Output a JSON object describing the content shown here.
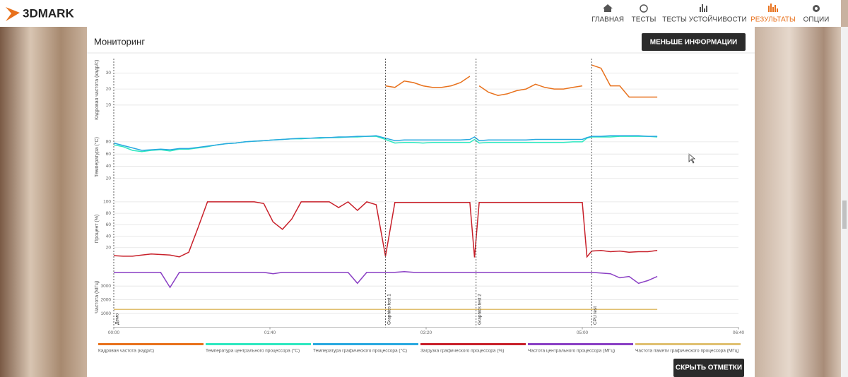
{
  "header": {
    "logo": "3DMARK",
    "nav": [
      "ГЛАВНАЯ",
      "ТЕСТЫ",
      "ТЕСТЫ УСТОЙЧИВОСТИ",
      "РЕЗУЛЬТАТЫ",
      "ОПЦИИ"
    ]
  },
  "panel": {
    "title": "Мониторинг",
    "toggle_button": "МЕНЬШЕ ИНФОРМАЦИИ",
    "hide_button": "СКРЫТЬ ОТМЕТКИ"
  },
  "test_markers": [
    {
      "x": 0,
      "label": "Демо"
    },
    {
      "x": 174,
      "label": "Graphics test 1"
    },
    {
      "x": 232,
      "label": "Graphics test 2"
    },
    {
      "x": 306,
      "label": "CPU test"
    }
  ],
  "chart_data": [
    {
      "type": "line",
      "ylabel": "Кадровая частота (кадр/с)",
      "xlim": [
        0,
        400
      ],
      "ylim": [
        0,
        39
      ],
      "yticks": [
        10,
        20,
        30
      ],
      "grid": true,
      "x": [
        0,
        6,
        12,
        18,
        24,
        30,
        36,
        42,
        48,
        54,
        60,
        66,
        72,
        78,
        84,
        90,
        96,
        102,
        108,
        114,
        120,
        126,
        132,
        138,
        144,
        150,
        156,
        162,
        168,
        174,
        180,
        186,
        192,
        198,
        204,
        210,
        216,
        222,
        228,
        231,
        234,
        240,
        246,
        252,
        258,
        264,
        270,
        276,
        282,
        288,
        294,
        300,
        303,
        306,
        312,
        318,
        324,
        330,
        336,
        342,
        348
      ],
      "series": [
        {
          "name": "Кадровая частота (кадр/с)",
          "color": "#e8711c",
          "values": [
            null,
            null,
            null,
            null,
            null,
            null,
            null,
            null,
            null,
            null,
            null,
            null,
            null,
            null,
            null,
            null,
            null,
            null,
            null,
            null,
            null,
            null,
            null,
            null,
            null,
            null,
            null,
            null,
            null,
            22,
            21,
            25,
            24,
            22,
            21,
            21,
            22,
            24,
            28,
            null,
            22,
            18,
            16,
            17,
            19,
            20,
            23,
            21,
            20,
            20,
            21,
            22,
            null,
            35,
            33,
            22,
            22,
            15,
            15,
            15,
            15
          ]
        }
      ]
    },
    {
      "type": "line",
      "ylabel": "Температура (°C)",
      "xlim": [
        0,
        400
      ],
      "ylim": [
        0,
        110
      ],
      "yticks": [
        20,
        40,
        60,
        80
      ],
      "grid": true,
      "x": [
        0,
        6,
        12,
        18,
        24,
        30,
        36,
        42,
        48,
        54,
        60,
        66,
        72,
        78,
        84,
        90,
        96,
        102,
        108,
        114,
        120,
        126,
        132,
        138,
        144,
        150,
        156,
        162,
        168,
        174,
        180,
        186,
        192,
        198,
        204,
        210,
        216,
        222,
        228,
        231,
        234,
        240,
        246,
        252,
        258,
        264,
        270,
        276,
        282,
        288,
        294,
        300,
        303,
        306,
        312,
        318,
        324,
        330,
        336,
        342,
        348
      ],
      "series": [
        {
          "name": "Температура центрального процессора (°C)",
          "color": "#2ee8c0",
          "values": [
            75,
            72,
            66,
            64,
            66,
            67,
            65,
            68,
            68,
            70,
            72,
            75,
            77,
            78,
            80,
            81,
            82,
            83,
            84,
            85,
            85,
            86,
            86,
            87,
            87,
            88,
            88,
            89,
            89,
            84,
            78,
            79,
            79,
            78,
            79,
            79,
            79,
            79,
            79,
            84,
            78,
            79,
            79,
            79,
            79,
            79,
            79,
            79,
            79,
            79,
            80,
            80,
            86,
            88,
            88,
            88,
            89,
            89,
            89,
            89,
            88
          ]
        },
        {
          "name": "Температура графического процессора (°C)",
          "color": "#29a9e0",
          "values": [
            78,
            74,
            70,
            66,
            67,
            68,
            67,
            69,
            69,
            71,
            73,
            75,
            77,
            78,
            80,
            81,
            82,
            83,
            84,
            85,
            86,
            86,
            87,
            87,
            88,
            88,
            89,
            89,
            90,
            86,
            82,
            83,
            83,
            83,
            83,
            83,
            83,
            83,
            84,
            88,
            82,
            83,
            83,
            83,
            83,
            83,
            84,
            84,
            84,
            84,
            84,
            84,
            87,
            89,
            89,
            90,
            90,
            90,
            90,
            89,
            89
          ]
        }
      ]
    },
    {
      "type": "line",
      "ylabel": "Процент (%)",
      "xlim": [
        0,
        400
      ],
      "ylim": [
        0,
        106
      ],
      "yticks": [
        20,
        40,
        60,
        80,
        100
      ],
      "grid": true,
      "x": [
        0,
        6,
        12,
        18,
        24,
        30,
        36,
        42,
        48,
        54,
        60,
        66,
        72,
        78,
        84,
        90,
        96,
        102,
        108,
        114,
        120,
        126,
        132,
        138,
        144,
        150,
        156,
        162,
        168,
        174,
        180,
        186,
        192,
        198,
        204,
        210,
        216,
        222,
        228,
        231,
        234,
        240,
        246,
        252,
        258,
        264,
        270,
        276,
        282,
        288,
        294,
        300,
        303,
        306,
        312,
        318,
        324,
        330,
        336,
        342,
        348
      ],
      "series": [
        {
          "name": "Загрузка графического процессора (%)",
          "color": "#c8202a",
          "values": [
            6,
            5,
            5,
            7,
            9,
            8,
            7,
            4,
            12,
            55,
            100,
            100,
            100,
            100,
            100,
            100,
            97,
            65,
            52,
            70,
            100,
            100,
            100,
            100,
            90,
            100,
            85,
            100,
            95,
            5,
            99,
            99,
            99,
            99,
            99,
            99,
            99,
            99,
            99,
            3,
            99,
            99,
            99,
            99,
            99,
            99,
            99,
            99,
            99,
            99,
            99,
            99,
            4,
            14,
            15,
            13,
            14,
            12,
            13,
            13,
            15
          ]
        }
      ]
    },
    {
      "type": "line",
      "ylabel": "Частота (МГц)",
      "xlim": [
        0,
        400
      ],
      "ylim": [
        0,
        4400
      ],
      "yticks": [
        1000,
        2000,
        3000
      ],
      "grid": true,
      "xticks": [
        {
          "value": 0,
          "label": "00:00"
        },
        {
          "value": 100,
          "label": "01:40"
        },
        {
          "value": 200,
          "label": "03:20"
        },
        {
          "value": 300,
          "label": "05:00"
        },
        {
          "value": 400,
          "label": "06:40"
        }
      ],
      "x": [
        0,
        6,
        12,
        18,
        24,
        30,
        36,
        42,
        48,
        54,
        60,
        66,
        72,
        78,
        84,
        90,
        96,
        102,
        108,
        114,
        120,
        126,
        132,
        138,
        144,
        150,
        156,
        162,
        168,
        174,
        180,
        186,
        192,
        198,
        204,
        210,
        216,
        222,
        228,
        231,
        234,
        240,
        246,
        252,
        258,
        264,
        270,
        276,
        282,
        288,
        294,
        300,
        303,
        306,
        312,
        318,
        324,
        330,
        336,
        342,
        348
      ],
      "series": [
        {
          "name": "Частота центрального процессора (МГц)",
          "color": "#8a3fc4",
          "values": [
            4000,
            4000,
            4000,
            4000,
            4000,
            4000,
            2900,
            4000,
            4000,
            4000,
            4000,
            4000,
            4000,
            4000,
            4000,
            4000,
            4000,
            3900,
            4000,
            4000,
            4000,
            4000,
            4000,
            4000,
            4000,
            4000,
            3200,
            4000,
            4000,
            4000,
            4000,
            4050,
            4000,
            4000,
            4000,
            4000,
            4000,
            4000,
            4000,
            4000,
            4000,
            4000,
            4000,
            4000,
            4000,
            4000,
            4000,
            4000,
            4000,
            4000,
            4000,
            4000,
            4000,
            4000,
            3950,
            3900,
            3600,
            3700,
            3200,
            3400,
            3700
          ]
        },
        {
          "name": "Частота памяти графического процессора (МГц)",
          "color": "#e0c070",
          "values": [
            1300,
            1300,
            1300,
            1300,
            1300,
            1300,
            1300,
            1300,
            1300,
            1300,
            1300,
            1300,
            1300,
            1300,
            1300,
            1300,
            1300,
            1300,
            1300,
            1300,
            1300,
            1300,
            1300,
            1300,
            1300,
            1300,
            1300,
            1300,
            1300,
            1300,
            1300,
            1300,
            1300,
            1300,
            1300,
            1300,
            1300,
            1300,
            1300,
            1300,
            1300,
            1300,
            1300,
            1300,
            1300,
            1300,
            1300,
            1300,
            1300,
            1300,
            1300,
            1300,
            1300,
            1300,
            1300,
            1300,
            1300,
            1300,
            1300,
            1300,
            1300
          ]
        }
      ]
    }
  ]
}
